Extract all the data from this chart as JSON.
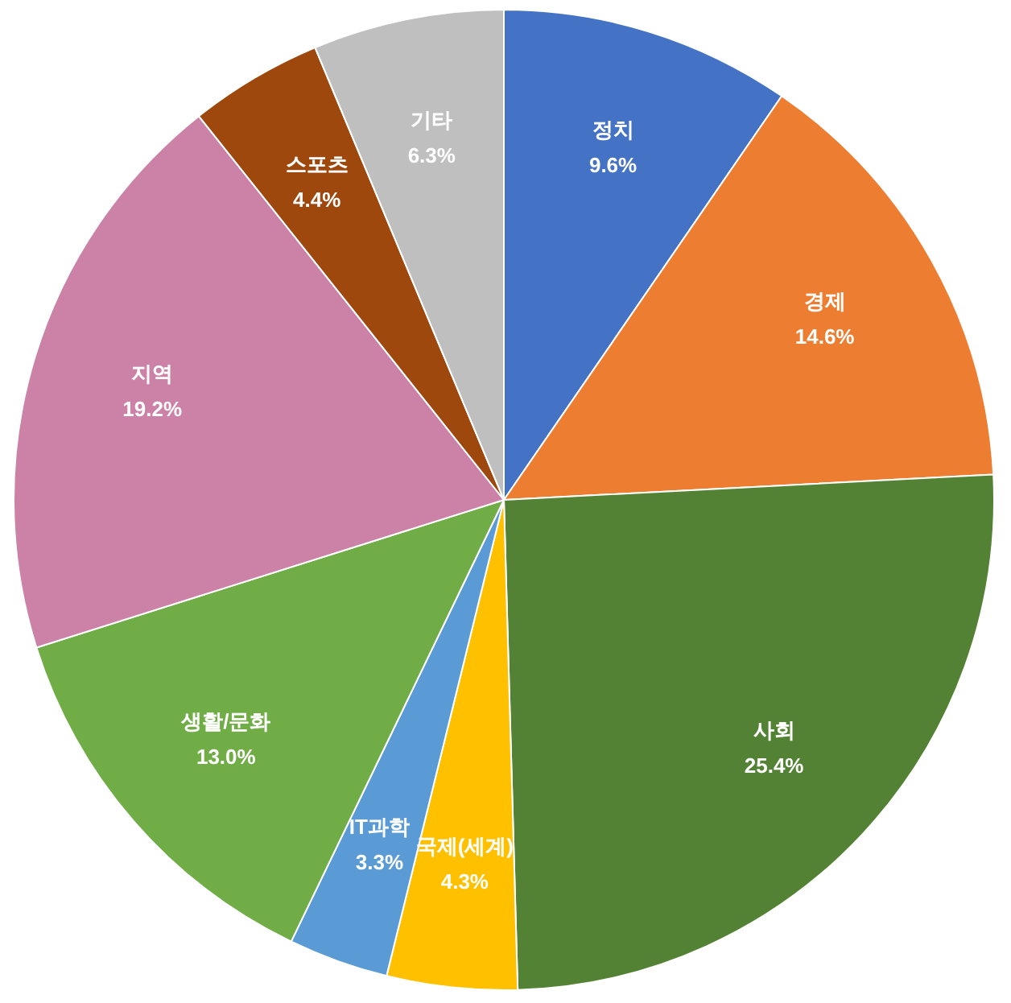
{
  "chart_data": {
    "type": "pie",
    "categories": [
      "정치",
      "경제",
      "사회",
      "국제(세계)",
      "IT과학",
      "생활/문화",
      "지역",
      "스포츠",
      "기타"
    ],
    "values": [
      9.6,
      14.6,
      25.4,
      4.3,
      3.3,
      13.0,
      19.2,
      4.4,
      6.3
    ],
    "value_labels": [
      "9.6%",
      "14.6%",
      "25.4%",
      "4.3%",
      "3.3%",
      "13.0%",
      "19.2%",
      "4.4%",
      "6.3%"
    ],
    "colors": [
      "#4472c4",
      "#ed7d31",
      "#548235",
      "#ffc000",
      "#5b9bd5",
      "#70ad47",
      "#cc81a6",
      "#9e480e",
      "#bfbfbf"
    ]
  }
}
